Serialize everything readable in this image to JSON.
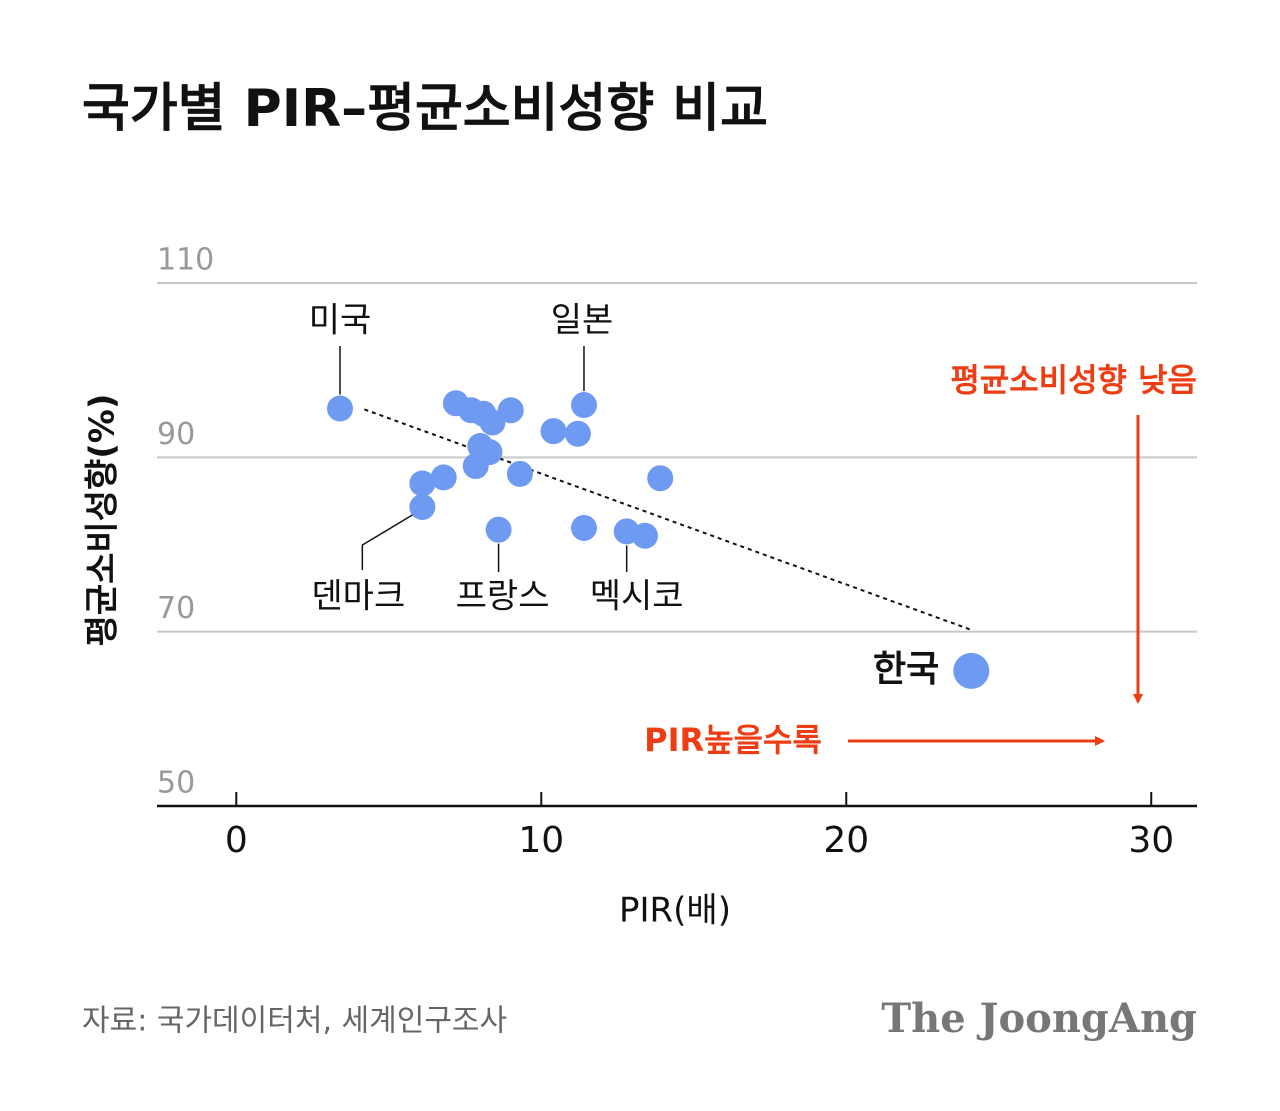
{
  "title": "국가별 PIR–평균소비성향 비교",
  "source": "자료: 국가데이터처, 세계인구조사",
  "logo": "The JoongAng",
  "chart_data": {
    "type": "scatter",
    "x_label": "PIR(배)",
    "y_label": "평균소비성향(%)",
    "xlim": [
      -2.6,
      31.5
    ],
    "ylim": [
      50,
      110
    ],
    "xticks": [
      0,
      10,
      20,
      30
    ],
    "yticks": [
      50,
      70,
      90,
      110
    ],
    "grid": true,
    "series": [
      {
        "color": "#6e9af2",
        "x": [
          3.4,
          11.4,
          6.1,
          8.6,
          12.8,
          7.2,
          7.7,
          8.1,
          8.4,
          9.0,
          10.4,
          11.2,
          8.0,
          8.3,
          7.85,
          9.3,
          13.9,
          6.8,
          6.1,
          11.4,
          13.4
        ],
        "y": [
          95.6,
          96.0,
          84.3,
          81.7,
          81.5,
          96.2,
          95.4,
          95.0,
          94.0,
          95.4,
          93.0,
          92.7,
          91.3,
          90.6,
          89.0,
          88.1,
          87.6,
          87.7,
          87.0,
          81.9,
          81.0
        ],
        "labels": [
          "미국",
          "일본",
          "덴마크",
          "프랑스",
          "멕시코",
          null,
          null,
          null,
          null,
          null,
          null,
          null,
          null,
          null,
          null,
          null,
          null,
          null,
          null,
          null,
          null
        ]
      },
      {
        "color": "#6e9af2",
        "x": [
          24.1
        ],
        "y": [
          65.5
        ],
        "labels": [
          "한국"
        ]
      }
    ],
    "trend": {
      "x": [
        4.2,
        24.1
      ],
      "y": [
        95.5,
        70.2
      ]
    },
    "annotations": {
      "vertical": "평균소비성향 낮음",
      "horizontal": "PIR높을수록",
      "color": "#ee3d12"
    }
  }
}
